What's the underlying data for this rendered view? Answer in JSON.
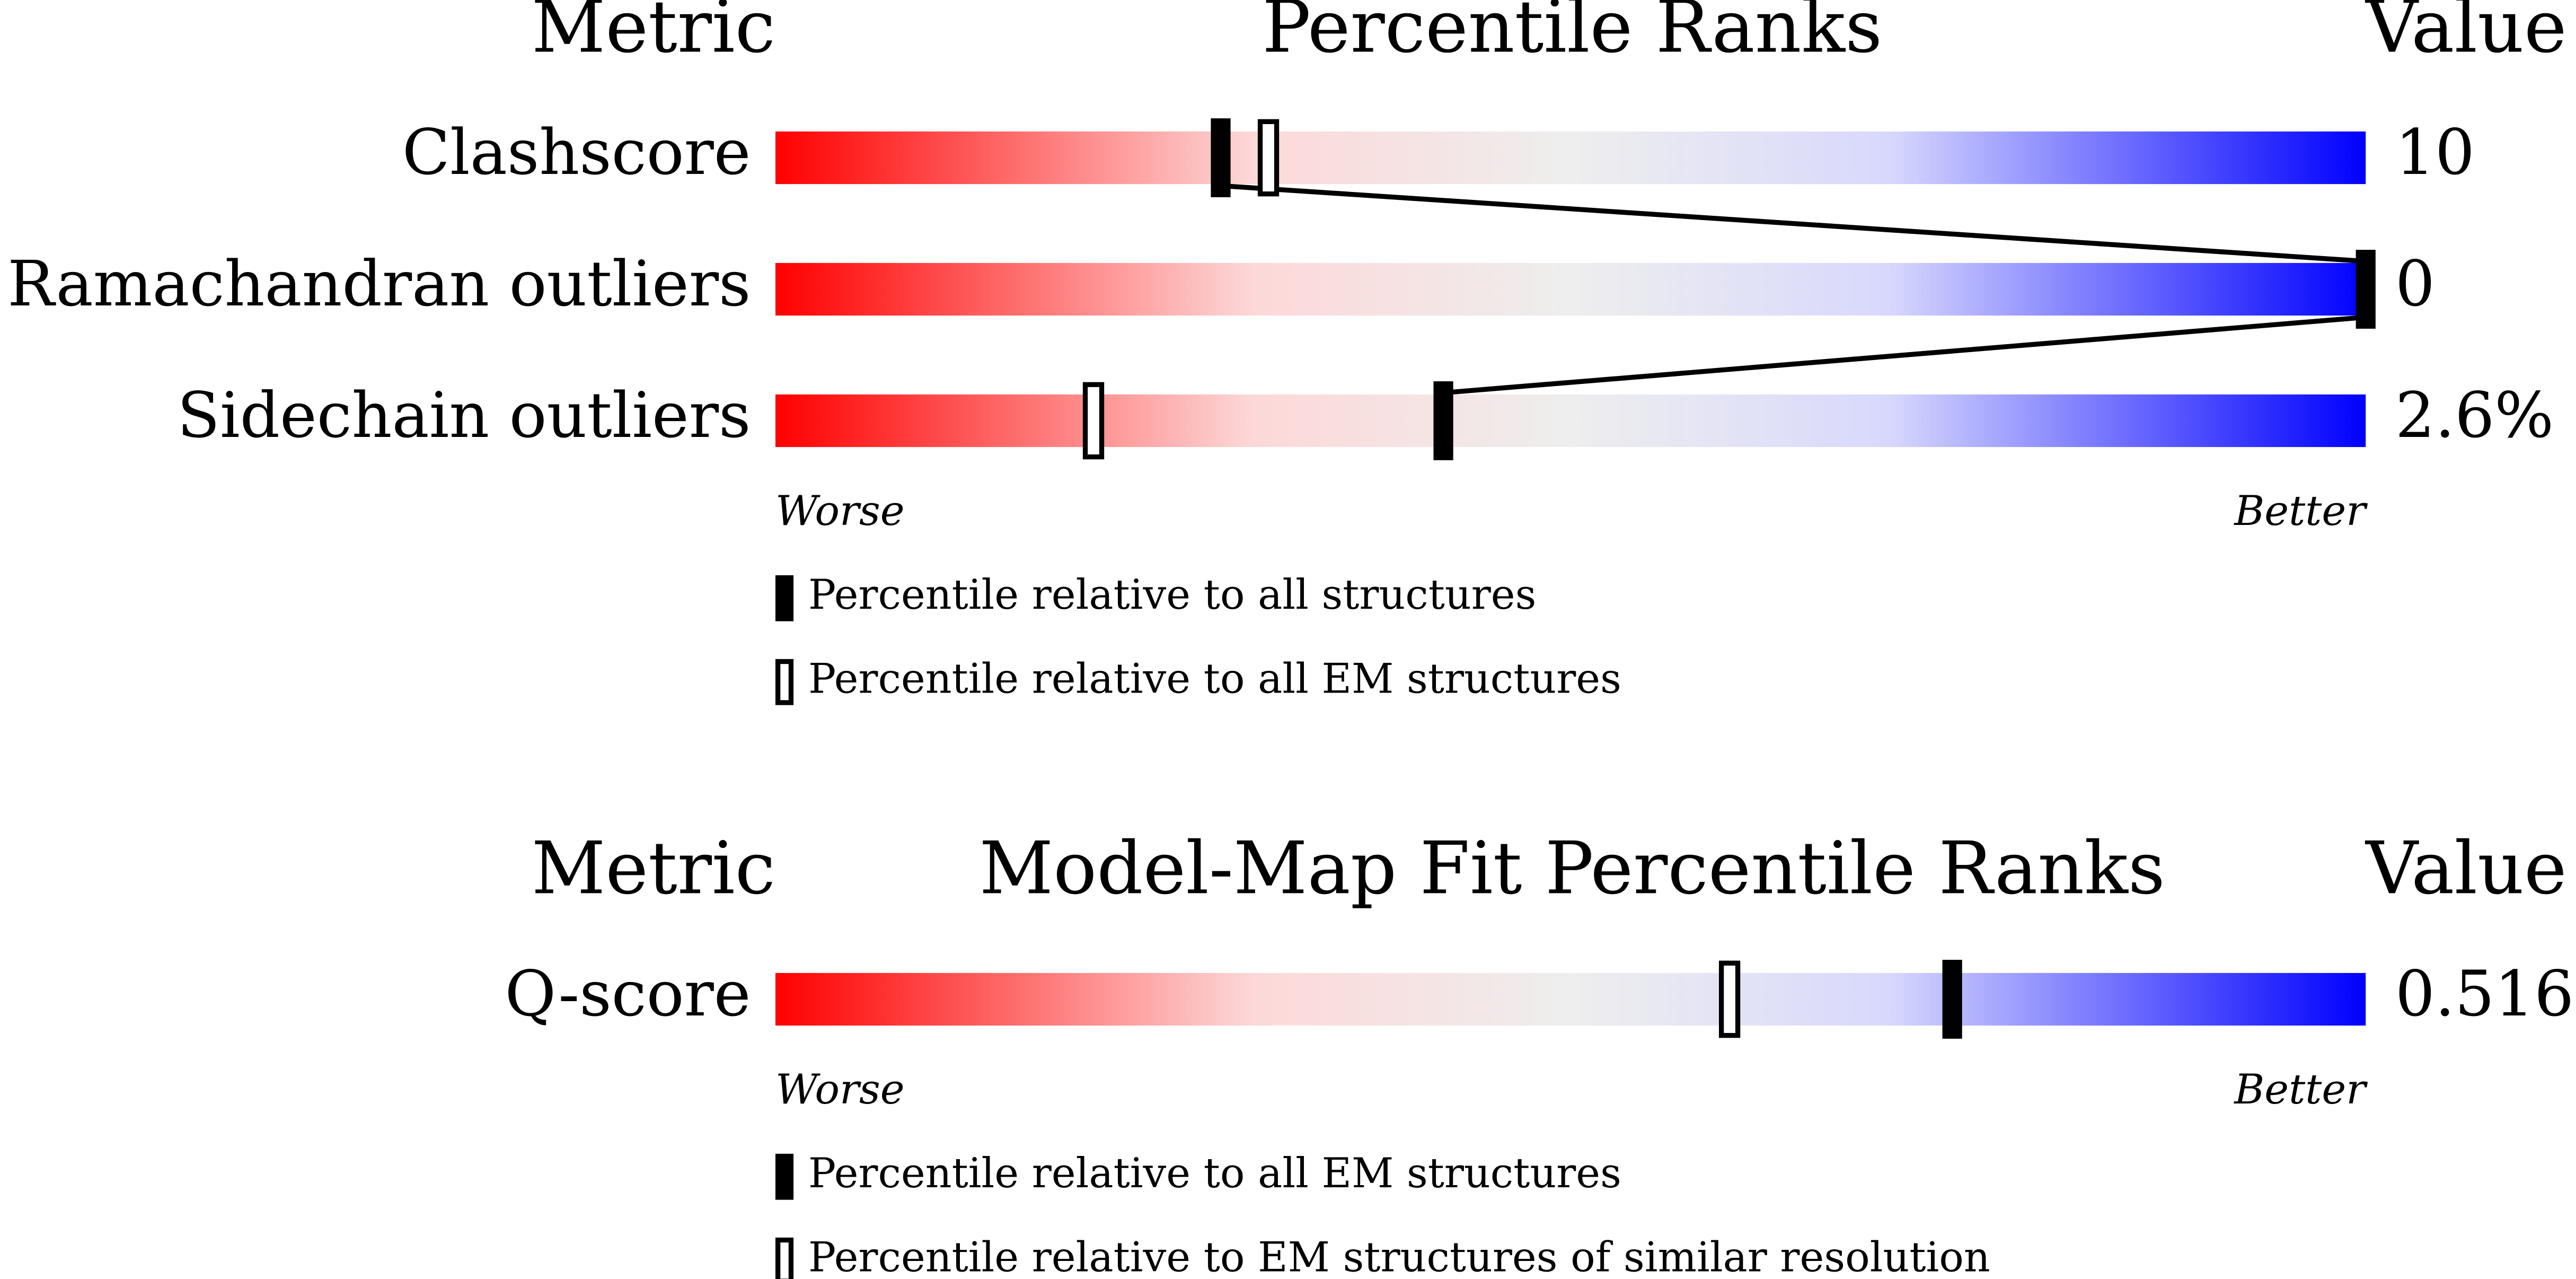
{
  "chart_data": [
    {
      "type": "percentile-slider",
      "metric_header": "Metric",
      "title": "Percentile Ranks",
      "value_header": "Value",
      "categories": [
        "Clashscore",
        "Ramachandran outliers",
        "Sidechain outliers"
      ],
      "metric_values": [
        "10",
        "0",
        "2.6%"
      ],
      "xlim": [
        0,
        100
      ],
      "low_label": "Worse",
      "high_label": "Better",
      "series": [
        {
          "name": "Percentile relative to all structures",
          "style": "filled",
          "color": "#000000",
          "values": [
            28,
            100,
            42
          ]
        },
        {
          "name": "Percentile relative to all EM structures",
          "style": "open",
          "color": "#000000",
          "values": [
            31,
            null,
            20
          ]
        }
      ]
    },
    {
      "type": "percentile-slider",
      "metric_header": "Metric",
      "title": "Model-Map Fit Percentile Ranks",
      "value_header": "Value",
      "categories": [
        "Q-score"
      ],
      "metric_values": [
        "0.516"
      ],
      "xlim": [
        0,
        100
      ],
      "low_label": "Worse",
      "high_label": "Better",
      "series": [
        {
          "name": "Percentile relative to all EM structures",
          "style": "filled",
          "color": "#000000",
          "values": [
            74
          ]
        },
        {
          "name": "Percentile relative to EM structures of similar resolution",
          "style": "open",
          "color": "#000000",
          "values": [
            60
          ]
        }
      ]
    }
  ]
}
